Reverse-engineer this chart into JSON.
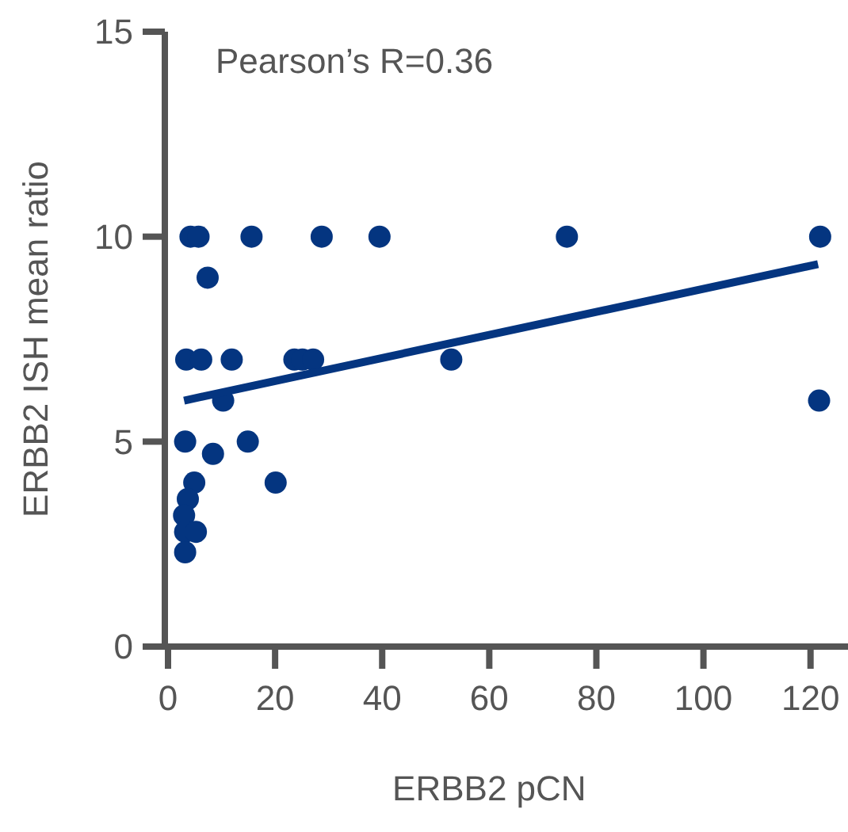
{
  "chart_data": {
    "type": "scatter",
    "xlabel": "ERBB2 pCN",
    "ylabel": "ERBB2 ISH mean ratio",
    "annotations": [
      "Pearson’s R=0.36"
    ],
    "xlim": [
      0,
      127
    ],
    "ylim": [
      0,
      15
    ],
    "xticks": [
      0,
      20,
      40,
      60,
      80,
      100,
      120
    ],
    "yticks": [
      0,
      5,
      10,
      15
    ],
    "marker": "circle",
    "grid": false,
    "series": [
      {
        "color": "#043580",
        "x": [
          4.2,
          5.7,
          15.6,
          28.7,
          39.5,
          74.5,
          121.8,
          7.4,
          3.4,
          6.2,
          11.9,
          23.6,
          25.1,
          27.1,
          52.9,
          10.3,
          121.6,
          3.2,
          14.9,
          8.4,
          4.9,
          20.1,
          3.7,
          3.0,
          3.2,
          5.2,
          3.2
        ],
        "values": [
          10,
          10,
          10,
          10,
          10,
          10,
          10,
          9,
          7,
          7,
          7,
          7,
          7,
          7,
          7,
          6,
          6,
          5,
          5,
          4.7,
          4,
          4,
          3.6,
          3.2,
          2.8,
          2.8,
          2.3
        ]
      },
      {
        "type": "line",
        "color": "#043580",
        "marker": "none",
        "x": [
          3.0,
          121.4
        ],
        "values": [
          6.0,
          9.33
        ]
      }
    ]
  }
}
